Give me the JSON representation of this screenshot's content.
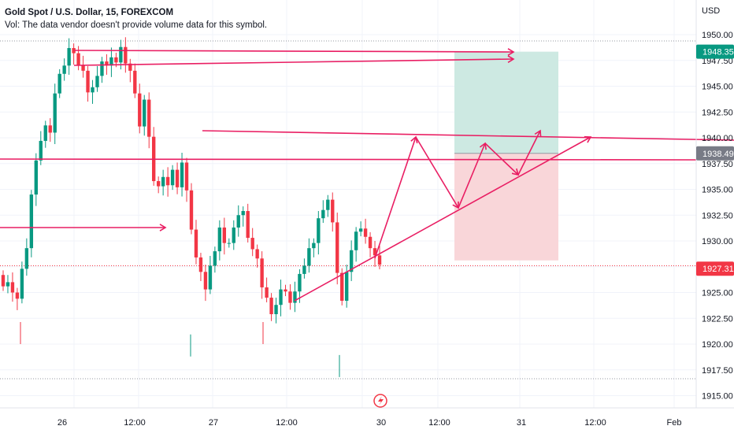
{
  "legend": {
    "title": "Gold Spot / U.S. Dollar, 15, FOREXCOM",
    "volume_note": "Vol: The data vendor doesn't provide volume data for this symbol."
  },
  "currency": "USD",
  "price_ticks": [
    "1950.00",
    "1947.50",
    "1945.00",
    "1942.50",
    "1940.00",
    "1937.50",
    "1935.00",
    "1932.50",
    "1930.00",
    "1927.50",
    "1925.00",
    "1922.50",
    "1920.00",
    "1917.50",
    "1915.00"
  ],
  "time_ticks": [
    "26",
    "12:00",
    "27",
    "12:00",
    "30",
    "12:00",
    "31",
    "12:00",
    "Feb"
  ],
  "price_tags": [
    {
      "label": "1948.35",
      "color": "#089981"
    },
    {
      "label": "1938.49",
      "color": "#787b86"
    },
    {
      "label": "1927.31",
      "color": "#f23645"
    }
  ],
  "colors": {
    "up": "#089981",
    "down": "#f23645",
    "drawing": "#e91e63",
    "profit_zone": "#cde9e2",
    "loss_zone": "#f9d6d9"
  },
  "icons": {
    "flash": "flash-icon"
  },
  "chart_data": {
    "type": "candlestick",
    "symbol": "Gold Spot / U.S. Dollar",
    "interval": "15",
    "ylim": [
      1914.5,
      1951.5
    ],
    "y_ticks": [
      1950.0,
      1947.5,
      1945.0,
      1942.5,
      1940.0,
      1937.5,
      1935.0,
      1932.5,
      1930.0,
      1927.5,
      1925.0,
      1922.5,
      1920.0,
      1917.5,
      1915.0
    ],
    "x_labels": [
      "26",
      "12:00",
      "27",
      "12:00",
      "30",
      "12:00",
      "31",
      "12:00",
      "Feb"
    ],
    "last_price": 1927.31,
    "position": {
      "target": 1948.35,
      "entry": 1938.49,
      "stop": 1927.31
    },
    "trendline_support_start": 1924.6,
    "resistance_level": 1937.6,
    "range_level": 1940.2
  }
}
